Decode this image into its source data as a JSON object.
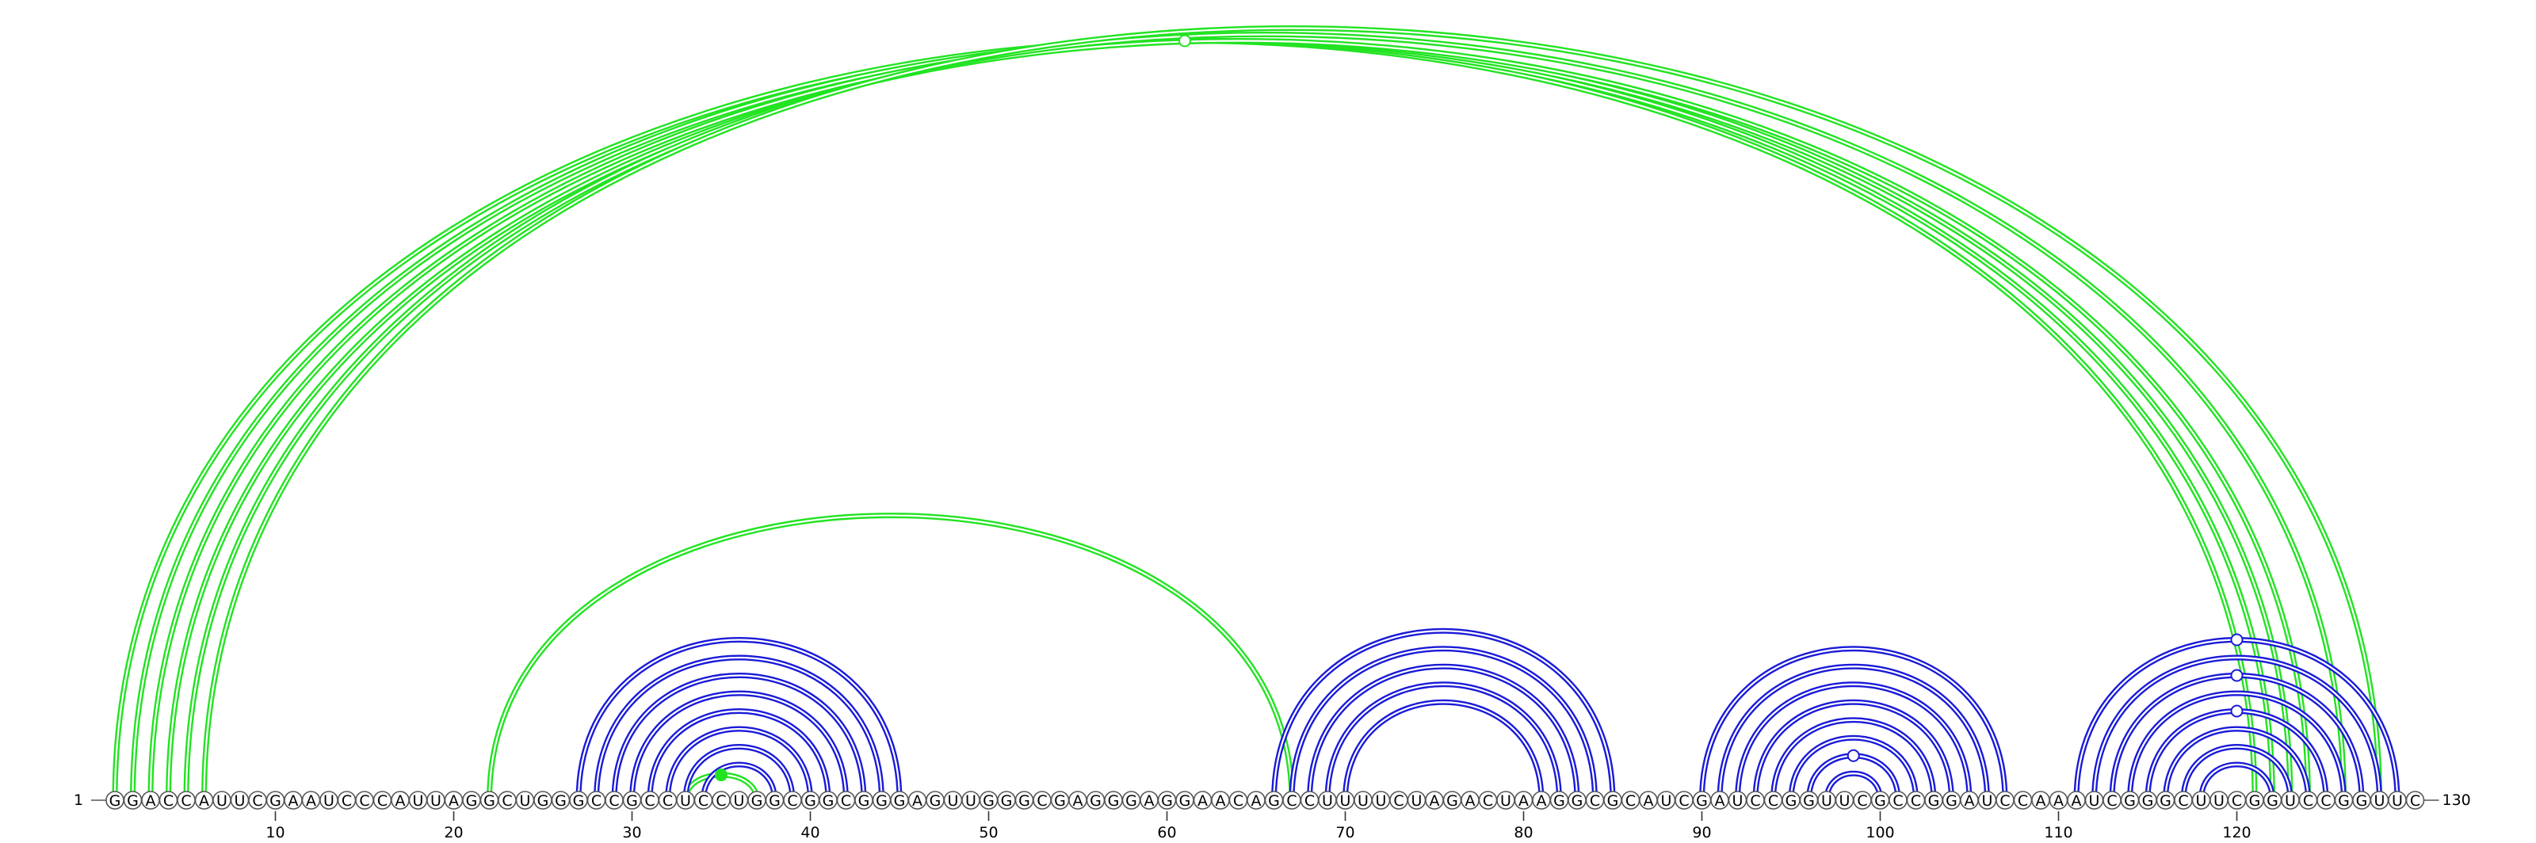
{
  "sequence": "GGACCAUUCGAAUCCCAUUAGGCUGGGCCGCCUCCUGGCGGCGGGAGUUGGGCGAGGGAGGAACAGCCUUUUCUAGACUAAGGCGCAUCGAUCCGGUUCGCCGGAUCCAAAUCGGGCUUCGGUCCGGUUC",
  "start_label": "1",
  "end_label": "130",
  "ticks": [
    10,
    20,
    30,
    40,
    50,
    60,
    70,
    80,
    90,
    100,
    110,
    120
  ],
  "colors": {
    "pseudoknot": "#22e322",
    "nested": "#1a1ad8"
  },
  "pairs": [
    {
      "i": 1,
      "j": 121,
      "color": "pseudoknot"
    },
    {
      "i": 2,
      "j": 122,
      "color": "pseudoknot"
    },
    {
      "i": 3,
      "j": 123,
      "color": "pseudoknot"
    },
    {
      "i": 4,
      "j": 124,
      "color": "pseudoknot"
    },
    {
      "i": 5,
      "j": 126,
      "color": "pseudoknot"
    },
    {
      "i": 6,
      "j": 128,
      "color": "pseudoknot"
    },
    {
      "i": 22,
      "j": 67,
      "color": "pseudoknot"
    },
    {
      "i": 33,
      "j": 37,
      "color": "pseudoknot"
    },
    {
      "i": 27,
      "j": 45,
      "color": "nested"
    },
    {
      "i": 28,
      "j": 44,
      "color": "nested"
    },
    {
      "i": 29,
      "j": 43,
      "color": "nested"
    },
    {
      "i": 30,
      "j": 42,
      "color": "nested"
    },
    {
      "i": 31,
      "j": 41,
      "color": "nested"
    },
    {
      "i": 32,
      "j": 40,
      "color": "nested"
    },
    {
      "i": 33,
      "j": 39,
      "color": "nested"
    },
    {
      "i": 34,
      "j": 38,
      "color": "nested"
    },
    {
      "i": 66,
      "j": 85,
      "color": "nested"
    },
    {
      "i": 67,
      "j": 84,
      "color": "nested"
    },
    {
      "i": 68,
      "j": 83,
      "color": "nested"
    },
    {
      "i": 69,
      "j": 82,
      "color": "nested"
    },
    {
      "i": 70,
      "j": 81,
      "color": "nested"
    },
    {
      "i": 90,
      "j": 107,
      "color": "nested"
    },
    {
      "i": 91,
      "j": 106,
      "color": "nested"
    },
    {
      "i": 92,
      "j": 105,
      "color": "nested"
    },
    {
      "i": 93,
      "j": 104,
      "color": "nested"
    },
    {
      "i": 94,
      "j": 103,
      "color": "nested"
    },
    {
      "i": 95,
      "j": 102,
      "color": "nested"
    },
    {
      "i": 96,
      "j": 101,
      "color": "nested"
    },
    {
      "i": 97,
      "j": 100,
      "color": "nested"
    },
    {
      "i": 111,
      "j": 129,
      "color": "nested"
    },
    {
      "i": 112,
      "j": 128,
      "color": "nested"
    },
    {
      "i": 113,
      "j": 127,
      "color": "nested"
    },
    {
      "i": 114,
      "j": 126,
      "color": "nested"
    },
    {
      "i": 115,
      "j": 125,
      "color": "nested"
    },
    {
      "i": 116,
      "j": 124,
      "color": "nested"
    },
    {
      "i": 117,
      "j": 123,
      "color": "nested"
    },
    {
      "i": 118,
      "j": 122,
      "color": "nested"
    }
  ],
  "markers": [
    {
      "pair": 0,
      "filled": false,
      "color": "pseudoknot"
    },
    {
      "pair": 7,
      "filled": true,
      "color": "pseudoknot"
    },
    {
      "pair": 29,
      "filled": false,
      "color": "nested"
    },
    {
      "pair": 31,
      "filled": false,
      "color": "nested"
    },
    {
      "pair": 33,
      "filled": false,
      "color": "nested"
    },
    {
      "pair": 27,
      "filled": false,
      "color": "nested"
    }
  ]
}
